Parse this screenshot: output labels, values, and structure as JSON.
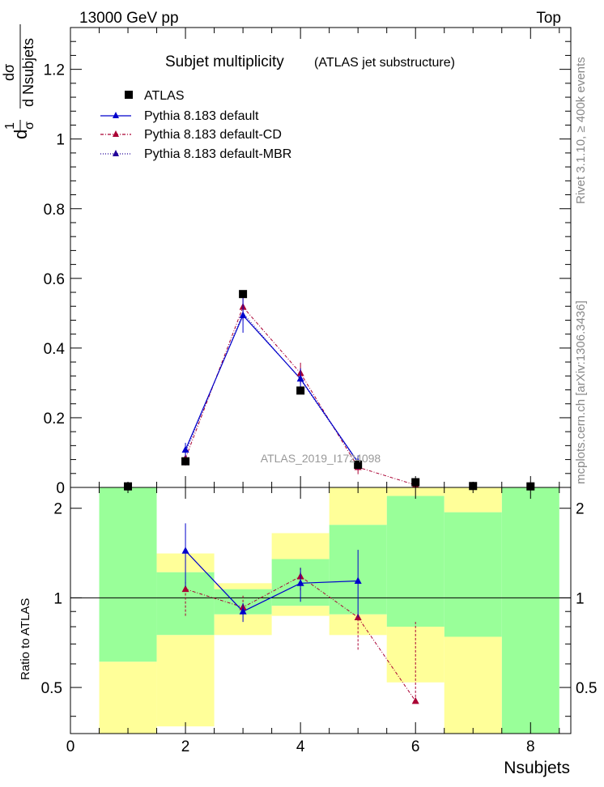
{
  "header": {
    "energy": "13000 GeV pp",
    "process": "Top"
  },
  "side_labels": {
    "rivet": "Rivet 3.1.10, ≥ 400k events",
    "mcplots": "mcplots.cern.ch [arXiv:1306.3436]"
  },
  "colors": {
    "green_band": "#99ff99",
    "yellow_band": "#ffff99",
    "atlas": "#000000",
    "default": "#0000cc",
    "cd": "#aa0033",
    "mbr": "#220099"
  },
  "chart_data": [
    {
      "type": "scatter",
      "title": "Subjet multiplicity",
      "subtitle": "(ATLAS jet substructure)",
      "watermark": "ATLAS_2019_I1724098",
      "xlabel": "Nsubjets",
      "ylabel": {
        "prefix": "1",
        "sigma": "σ",
        "d": "d",
        "dsigma": "dσ",
        "dvar": "d Nsubjets"
      },
      "xlim": [
        0,
        8.7
      ],
      "ylim": [
        0,
        1.32
      ],
      "xticks": [
        "0",
        "2",
        "4",
        "6",
        "8"
      ],
      "yticks": [
        "0",
        "0.2",
        "0.4",
        "0.6",
        "0.8",
        "1",
        "1.2"
      ],
      "legend": [
        "ATLAS",
        "Pythia 8.183 default",
        "Pythia 8.183 default-CD",
        "Pythia 8.183 default-MBR"
      ],
      "series": [
        {
          "name": "ATLAS",
          "x": [
            1,
            2,
            3,
            4,
            5,
            6,
            7,
            8
          ],
          "values": [
            0.003,
            0.075,
            0.555,
            0.278,
            0.065,
            0.015,
            0.004,
            0.003
          ]
        },
        {
          "name": "Pythia 8.183 default",
          "x": [
            2,
            3,
            4,
            5
          ],
          "values": [
            0.108,
            0.494,
            0.312,
            0.072
          ],
          "err": [
            0.02,
            0.05,
            0.03,
            0.02
          ]
        },
        {
          "name": "Pythia 8.183 default-CD",
          "x": [
            2,
            3,
            4,
            5,
            6
          ],
          "values": [
            0.083,
            0.518,
            0.328,
            0.058,
            0.007
          ],
          "err": [
            0.02,
            0.04,
            0.03,
            0.02,
            0.005
          ]
        },
        {
          "name": "Pythia 8.183 default-MBR",
          "x": [
            2,
            3,
            4,
            5
          ],
          "values": [
            0.1,
            0.5,
            0.31,
            0.07
          ],
          "err": [
            0.0,
            0.0,
            0.0,
            0.0
          ]
        }
      ]
    },
    {
      "type": "scatter",
      "ylabel": "Ratio to ATLAS",
      "xlim": [
        0,
        8.7
      ],
      "ylim": [
        0.35,
        2.35
      ],
      "yticks": [
        "0.5",
        "1",
        "2"
      ],
      "yticks_right": [
        "0.5",
        "1",
        "2"
      ],
      "green_band": [
        [
          0.5,
          1.5,
          0.61,
          2.35
        ],
        [
          1.5,
          2.5,
          0.75,
          1.22
        ],
        [
          2.5,
          3.5,
          0.88,
          1.07
        ],
        [
          3.5,
          4.5,
          0.94,
          1.35
        ],
        [
          4.5,
          5.5,
          0.88,
          1.76
        ],
        [
          5.5,
          6.5,
          0.8,
          2.2
        ],
        [
          6.5,
          7.5,
          0.74,
          1.94
        ],
        [
          7.5,
          8.5,
          0.35,
          2.35
        ]
      ],
      "yellow_band": [
        [
          0.5,
          1.5,
          0.35,
          0.61
        ],
        [
          1.5,
          2.5,
          0.37,
          1.41
        ],
        [
          2.5,
          3.5,
          0.75,
          1.12
        ],
        [
          3.5,
          4.5,
          0.87,
          1.65
        ],
        [
          4.5,
          5.5,
          0.75,
          2.35
        ],
        [
          5.5,
          6.5,
          0.52,
          2.35
        ],
        [
          6.5,
          7.5,
          0.35,
          2.35
        ]
      ],
      "series": [
        {
          "name": "Pythia 8.183 default",
          "x": [
            2,
            3,
            4,
            5
          ],
          "values": [
            1.44,
            0.9,
            1.12,
            1.14
          ],
          "lo": [
            1.09,
            0.83,
            0.97,
            0.86
          ],
          "hi": [
            1.78,
            0.96,
            1.26,
            1.45
          ]
        },
        {
          "name": "Pythia 8.183 default-CD",
          "x": [
            2,
            3,
            4,
            5,
            6
          ],
          "values": [
            1.07,
            0.93,
            1.18,
            0.86,
            0.45
          ],
          "lo": [
            0.87,
            0.88,
            1.06,
            0.67,
            0.45
          ],
          "hi": [
            1.13,
            1.02,
            1.27,
            0.86,
            0.83
          ]
        }
      ]
    }
  ]
}
